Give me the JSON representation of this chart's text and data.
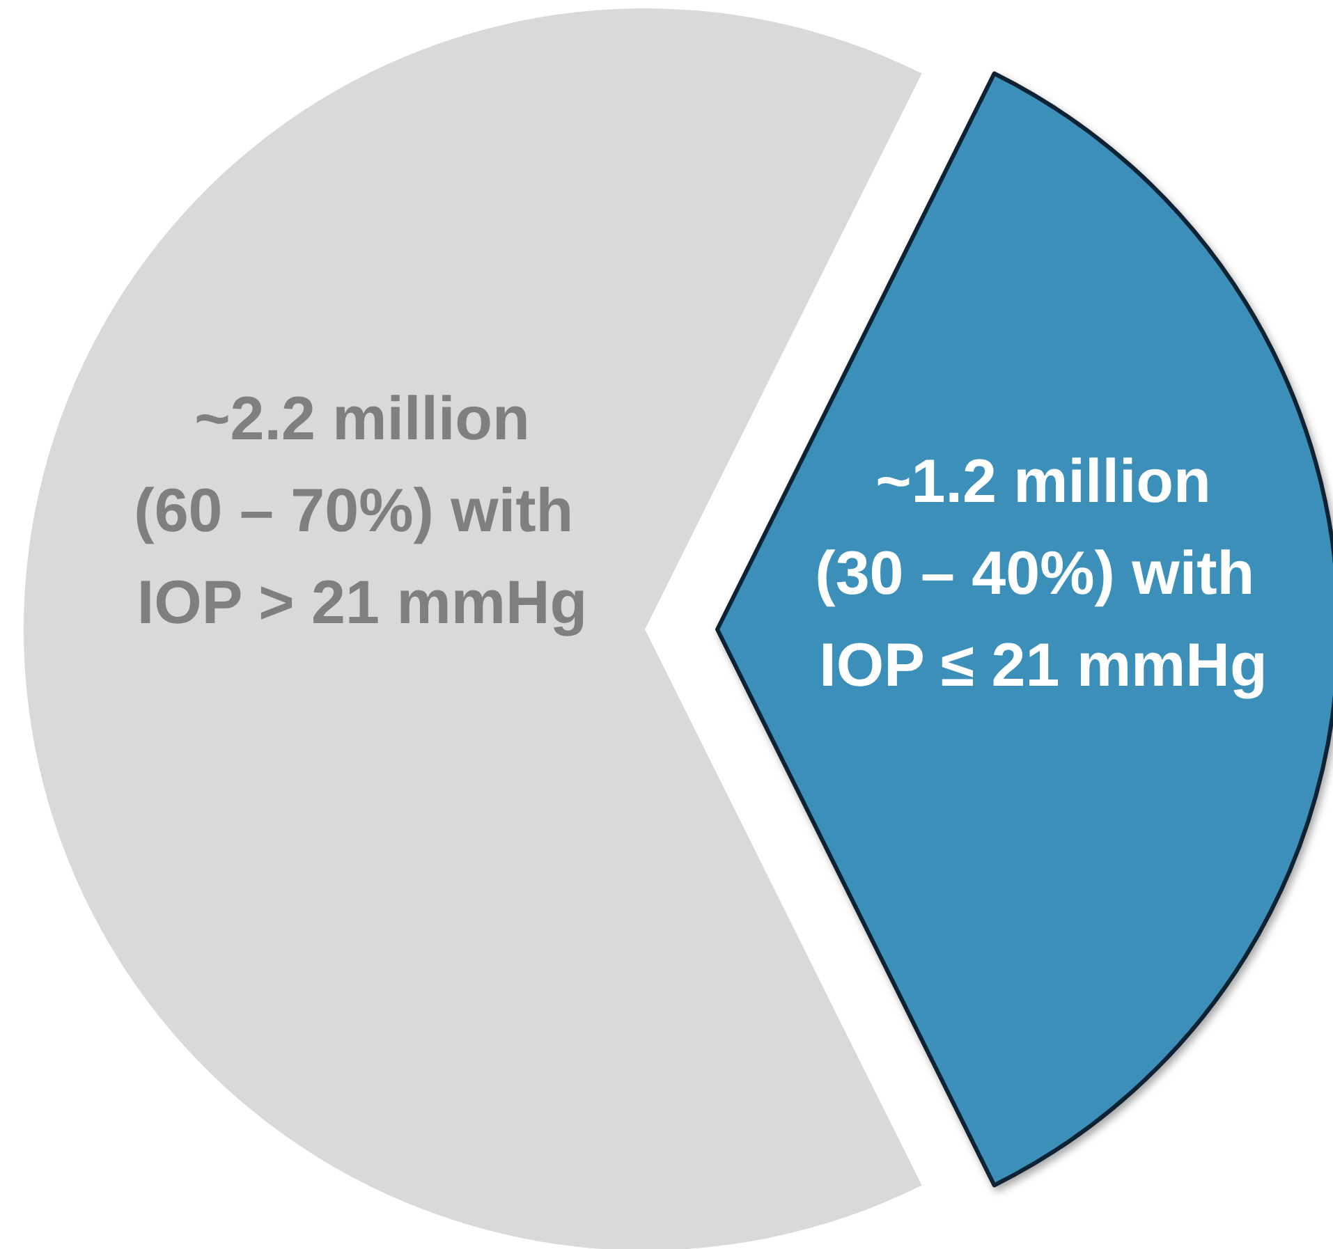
{
  "chart_data": {
    "type": "pie",
    "categories": [
      "(60 – 70%) with IOP > 21 mmHg",
      "(30 – 40%) with IOP ≤ 21 mmHg"
    ],
    "values": [
      2.2,
      1.2
    ],
    "value_labels": [
      "~2.2 million",
      "~1.2 million"
    ],
    "colors": [
      "#d9d9d9",
      "#3a8fb8"
    ]
  }
}
